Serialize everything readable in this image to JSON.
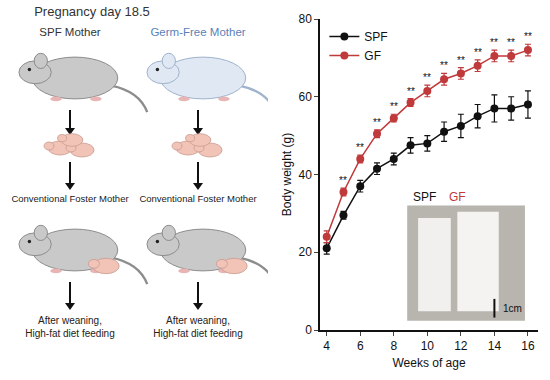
{
  "diagram": {
    "title": "Pregnancy day 18.5",
    "mothers": [
      {
        "label": "SPF Mother",
        "color": "#333333"
      },
      {
        "label": "Germ-Free Mother",
        "color": "#5a7fb8"
      }
    ],
    "foster": [
      "Conventional Foster Mother",
      "Conventional Foster Mother"
    ],
    "diet": [
      [
        "After weaning,",
        "High-fat diet feeding"
      ],
      [
        "After weaning,",
        "High-fat diet feeding"
      ]
    ]
  },
  "chart_data": {
    "type": "line",
    "x_label": "Weeks of age",
    "y_label": "Body weight (g)",
    "x": [
      4,
      5,
      6,
      7,
      8,
      9,
      10,
      11,
      12,
      13,
      14,
      15,
      16
    ],
    "series": [
      {
        "name": "SPF",
        "color": "#111111",
        "marker": "circle",
        "values": [
          21,
          29.5,
          37,
          41.5,
          44,
          47.5,
          48,
          51,
          52.5,
          55,
          57,
          57,
          58
        ],
        "errors": [
          1.5,
          1,
          1.5,
          1.5,
          1.5,
          2,
          2,
          2.5,
          3,
          3,
          3.5,
          3,
          3.5
        ]
      },
      {
        "name": "GF",
        "color": "#c0393b",
        "marker": "circle",
        "values": [
          24,
          35.5,
          44,
          50.5,
          54.5,
          58.5,
          61.5,
          64.5,
          66,
          68,
          70.5,
          70.5,
          72
        ],
        "errors": [
          1.5,
          1,
          1,
          1,
          1,
          1,
          1.5,
          1.5,
          1.5,
          1.5,
          1.5,
          1.5,
          1.5
        ]
      }
    ],
    "xlim": [
      3.6,
      16.6
    ],
    "xticks": [
      4,
      6,
      8,
      10,
      12,
      14,
      16
    ],
    "ylim": [
      0,
      80
    ],
    "yticks": [
      0,
      20,
      40,
      60,
      80
    ],
    "grid": false,
    "legend": "top-left",
    "significance": {
      "label": "**",
      "x": [
        5,
        6,
        7,
        8,
        9,
        10,
        11,
        12,
        13,
        14,
        15,
        16
      ]
    },
    "inset": {
      "labels": [
        "SPF",
        "GF"
      ],
      "scale_bar": "1cm"
    }
  }
}
